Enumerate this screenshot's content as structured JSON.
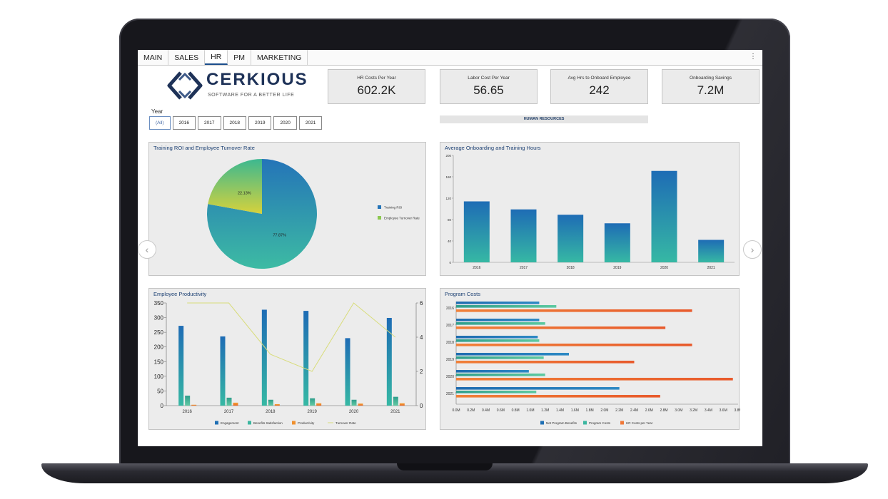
{
  "tabs": [
    "MAIN",
    "SALES",
    "HR",
    "PM",
    "MARKETING"
  ],
  "active_tab": "HR",
  "menu_icon": "more-vertical-icon",
  "logo": {
    "text": "CERKIOUS",
    "tagline": "SOFTWARE FOR A BETTER LIFE"
  },
  "year_filter": {
    "label": "Year",
    "options": [
      "(All)",
      "2016",
      "2017",
      "2018",
      "2019",
      "2020",
      "2021"
    ],
    "selected": "(All)"
  },
  "kpis": [
    {
      "label": "HR Costs Per Year",
      "value": "602.2K"
    },
    {
      "label": "Labor Cost Per Year",
      "value": "56.65"
    },
    {
      "label": "Avg Hrs to Onboard Employee",
      "value": "242"
    },
    {
      "label": "Onboarding Savings",
      "value": "7.2M"
    }
  ],
  "section_banner": "HUMAN RESOURCES",
  "colors": {
    "blue": "#1f6fb4",
    "teal": "#3cb6a0",
    "green_gradient": "#8ccf5a",
    "orange": "#f07838",
    "line_yellow": "#d8dc7a"
  },
  "chart_data": [
    {
      "type": "pie",
      "title": "Training ROI and Employee Turnover Rate",
      "labels": [
        "Training ROI",
        "Employee Turnover Rate"
      ],
      "values": [
        77.87,
        22.13
      ],
      "slice_labels": [
        "77.87%",
        "22.13%"
      ],
      "legend_position": "right"
    },
    {
      "type": "bar",
      "title": "Average Onboarding and Training Hours",
      "categories": [
        "2016",
        "2017",
        "2018",
        "2019",
        "2020",
        "2021"
      ],
      "values": [
        114,
        99,
        89,
        73,
        171,
        42
      ],
      "ylim": [
        0,
        200
      ],
      "yticks": [
        0,
        40,
        80,
        120,
        160,
        200
      ],
      "grid": false
    },
    {
      "type": "bar",
      "title": "Employee Productivity",
      "categories": [
        "2016",
        "2017",
        "2018",
        "2019",
        "2020",
        "2021"
      ],
      "series": [
        {
          "name": "Engagement",
          "values": [
            272,
            236,
            327,
            323,
            230,
            299
          ]
        },
        {
          "name": "Benefits Satisfaction",
          "values": [
            34,
            27,
            20,
            25,
            20,
            30
          ]
        },
        {
          "name": "Productivity",
          "values": [
            3,
            10,
            5,
            8,
            7,
            8
          ]
        },
        {
          "name": "Turnover Rate",
          "values": [
            6,
            6,
            3,
            2,
            6,
            4
          ],
          "axis": "right",
          "kind": "line"
        }
      ],
      "ylim": [
        0,
        350
      ],
      "yticks": [
        0,
        50,
        100,
        150,
        200,
        250,
        300,
        350
      ],
      "y2lim": [
        0,
        6
      ],
      "y2ticks": [
        0,
        2,
        4,
        6
      ],
      "legend_position": "bottom"
    },
    {
      "type": "bar",
      "orientation": "horizontal",
      "title": "Program Costs",
      "categories": [
        "2016",
        "2017",
        "2018",
        "2019",
        "2020",
        "2021"
      ],
      "series": [
        {
          "name": "Net Program Benefits",
          "values": [
            1.12,
            1.12,
            1.1,
            1.52,
            0.98,
            2.2
          ]
        },
        {
          "name": "Program Costs",
          "values": [
            1.35,
            1.2,
            1.12,
            1.18,
            1.2,
            1.08
          ]
        },
        {
          "name": "HR Costs per Year",
          "values": [
            3.18,
            2.82,
            3.18,
            2.4,
            3.73,
            2.75
          ]
        }
      ],
      "xlim": [
        0,
        3.8
      ],
      "xticks": [
        "0.0M",
        "0.2M",
        "0.4M",
        "0.6M",
        "0.8M",
        "1.0M",
        "1.2M",
        "1.4M",
        "1.6M",
        "1.8M",
        "2.0M",
        "2.2M",
        "2.4M",
        "2.6M",
        "2.8M",
        "3.0M",
        "3.2M",
        "3.4M",
        "3.6M",
        "3.8M"
      ],
      "legend_position": "bottom"
    }
  ]
}
